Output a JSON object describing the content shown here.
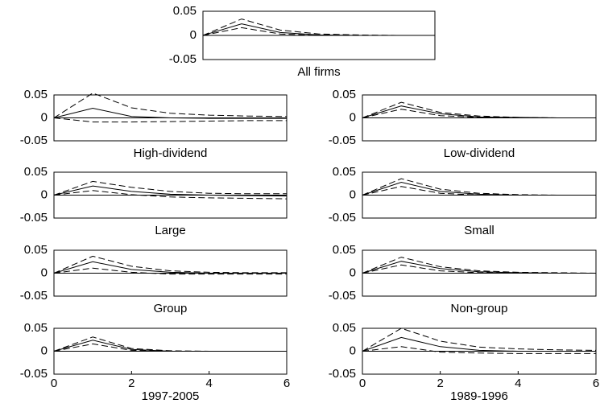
{
  "chart_data": [
    {
      "type": "line",
      "title": "All firms",
      "xlim": [
        0,
        6
      ],
      "ylim": [
        -0.05,
        0.05
      ],
      "yticks": [
        "0.05",
        "0",
        "-0.05"
      ],
      "xticks": [],
      "x": [
        0,
        1,
        2,
        3,
        4,
        5,
        6
      ],
      "series": [
        {
          "role": "estimate",
          "style": "solid",
          "values": [
            0,
            0.024,
            0.006,
            0.001,
            0.0,
            0.0,
            0.0
          ]
        },
        {
          "role": "upper band",
          "style": "dashed",
          "values": [
            0,
            0.034,
            0.011,
            0.003,
            0.001,
            0.0,
            0.0
          ]
        },
        {
          "role": "lower band",
          "style": "dashed",
          "values": [
            0,
            0.016,
            0.003,
            0.0,
            0.0,
            0.0,
            0.0
          ]
        }
      ]
    },
    {
      "type": "line",
      "title": "High-dividend",
      "xlim": [
        0,
        6
      ],
      "ylim": [
        -0.05,
        0.05
      ],
      "yticks": [
        "0.05",
        "0",
        "-0.05"
      ],
      "xticks": [],
      "x": [
        0,
        1,
        2,
        3,
        4,
        5,
        6
      ],
      "series": [
        {
          "role": "estimate",
          "style": "solid",
          "values": [
            0,
            0.021,
            0.003,
            0.0,
            -0.001,
            -0.001,
            -0.001
          ]
        },
        {
          "role": "upper band",
          "style": "dashed",
          "values": [
            0,
            0.054,
            0.022,
            0.01,
            0.006,
            0.004,
            0.003
          ]
        },
        {
          "role": "lower band",
          "style": "dashed",
          "values": [
            0,
            -0.009,
            -0.009,
            -0.008,
            -0.007,
            -0.006,
            -0.006
          ]
        }
      ]
    },
    {
      "type": "line",
      "title": "Low-dividend",
      "xlim": [
        0,
        6
      ],
      "ylim": [
        -0.05,
        0.05
      ],
      "yticks": [
        "0.05",
        "0",
        "-0.05"
      ],
      "xticks": [],
      "x": [
        0,
        1,
        2,
        3,
        4,
        5,
        6
      ],
      "series": [
        {
          "role": "estimate",
          "style": "solid",
          "values": [
            0,
            0.026,
            0.009,
            0.002,
            0.001,
            0.0,
            0.0
          ]
        },
        {
          "role": "upper band",
          "style": "dashed",
          "values": [
            0,
            0.034,
            0.012,
            0.004,
            0.001,
            0.0,
            0.0
          ]
        },
        {
          "role": "lower band",
          "style": "dashed",
          "values": [
            0,
            0.019,
            0.005,
            0.001,
            0.0,
            0.0,
            0.0
          ]
        }
      ]
    },
    {
      "type": "line",
      "title": "Large",
      "xlim": [
        0,
        6
      ],
      "ylim": [
        -0.05,
        0.05
      ],
      "yticks": [
        "0.05",
        "0",
        "-0.05"
      ],
      "xticks": [],
      "x": [
        0,
        1,
        2,
        3,
        4,
        5,
        6
      ],
      "series": [
        {
          "role": "estimate",
          "style": "solid",
          "values": [
            0,
            0.02,
            0.008,
            0.002,
            0.0,
            -0.001,
            -0.002
          ]
        },
        {
          "role": "upper band",
          "style": "dashed",
          "values": [
            0,
            0.03,
            0.017,
            0.008,
            0.004,
            0.003,
            0.003
          ]
        },
        {
          "role": "lower band",
          "style": "dashed",
          "values": [
            0,
            0.01,
            0.001,
            -0.004,
            -0.006,
            -0.007,
            -0.008
          ]
        }
      ]
    },
    {
      "type": "line",
      "title": "Small",
      "xlim": [
        0,
        6
      ],
      "ylim": [
        -0.05,
        0.05
      ],
      "yticks": [
        "0.05",
        "0",
        "-0.05"
      ],
      "xticks": [],
      "x": [
        0,
        1,
        2,
        3,
        4,
        5,
        6
      ],
      "series": [
        {
          "role": "estimate",
          "style": "solid",
          "values": [
            0,
            0.028,
            0.008,
            0.002,
            0.0,
            0.0,
            0.0
          ]
        },
        {
          "role": "upper band",
          "style": "dashed",
          "values": [
            0,
            0.036,
            0.013,
            0.004,
            0.001,
            0.0,
            0.0
          ]
        },
        {
          "role": "lower band",
          "style": "dashed",
          "values": [
            0,
            0.019,
            0.004,
            0.0,
            0.0,
            0.0,
            0.0
          ]
        }
      ]
    },
    {
      "type": "line",
      "title": "Group",
      "xlim": [
        0,
        6
      ],
      "ylim": [
        -0.05,
        0.05
      ],
      "yticks": [
        "0.05",
        "0",
        "-0.05"
      ],
      "xticks": [],
      "x": [
        0,
        1,
        2,
        3,
        4,
        5,
        6
      ],
      "series": [
        {
          "role": "estimate",
          "style": "solid",
          "values": [
            0,
            0.025,
            0.008,
            0.002,
            0.0,
            0.0,
            0.0
          ]
        },
        {
          "role": "upper band",
          "style": "dashed",
          "values": [
            0,
            0.037,
            0.015,
            0.005,
            0.002,
            0.001,
            0.001
          ]
        },
        {
          "role": "lower band",
          "style": "dashed",
          "values": [
            0,
            0.011,
            0.002,
            -0.002,
            -0.002,
            -0.002,
            -0.002
          ]
        }
      ]
    },
    {
      "type": "line",
      "title": "Non-group",
      "xlim": [
        0,
        6
      ],
      "ylim": [
        -0.05,
        0.05
      ],
      "yticks": [
        "0.05",
        "0",
        "-0.05"
      ],
      "xticks": [],
      "x": [
        0,
        1,
        2,
        3,
        4,
        5,
        6
      ],
      "series": [
        {
          "role": "estimate",
          "style": "solid",
          "values": [
            0,
            0.026,
            0.01,
            0.003,
            0.001,
            0.0,
            0.0
          ]
        },
        {
          "role": "upper band",
          "style": "dashed",
          "values": [
            0,
            0.035,
            0.014,
            0.005,
            0.002,
            0.001,
            0.0
          ]
        },
        {
          "role": "lower band",
          "style": "dashed",
          "values": [
            0,
            0.018,
            0.005,
            0.001,
            0.0,
            0.0,
            0.0
          ]
        }
      ]
    },
    {
      "type": "line",
      "title": "1997-2005",
      "xlim": [
        0,
        6
      ],
      "ylim": [
        -0.05,
        0.05
      ],
      "yticks": [
        "0.05",
        "0",
        "-0.05"
      ],
      "xticks": [
        "0",
        "2",
        "4",
        "6"
      ],
      "x": [
        0,
        1,
        2,
        3,
        4,
        5,
        6
      ],
      "series": [
        {
          "role": "estimate",
          "style": "solid",
          "values": [
            0,
            0.024,
            0.004,
            0.0,
            0.0,
            0.0,
            0.0
          ]
        },
        {
          "role": "upper band",
          "style": "dashed",
          "values": [
            0,
            0.031,
            0.006,
            0.001,
            0.0,
            0.0,
            0.0
          ]
        },
        {
          "role": "lower band",
          "style": "dashed",
          "values": [
            0,
            0.016,
            0.002,
            0.0,
            0.0,
            0.0,
            0.0
          ]
        }
      ]
    },
    {
      "type": "line",
      "title": "1989-1996",
      "xlim": [
        0,
        6
      ],
      "ylim": [
        -0.05,
        0.05
      ],
      "yticks": [
        "0.05",
        "0",
        "-0.05"
      ],
      "xticks": [
        "0",
        "2",
        "4",
        "6"
      ],
      "x": [
        0,
        1,
        2,
        3,
        4,
        5,
        6
      ],
      "series": [
        {
          "role": "estimate",
          "style": "solid",
          "values": [
            0,
            0.03,
            0.01,
            0.002,
            0.0,
            0.0,
            0.0
          ]
        },
        {
          "role": "upper band",
          "style": "dashed",
          "values": [
            0,
            0.05,
            0.022,
            0.009,
            0.005,
            0.003,
            0.002
          ]
        },
        {
          "role": "lower band",
          "style": "dashed",
          "values": [
            0,
            0.01,
            -0.002,
            -0.004,
            -0.005,
            -0.005,
            -0.005
          ]
        }
      ]
    }
  ]
}
